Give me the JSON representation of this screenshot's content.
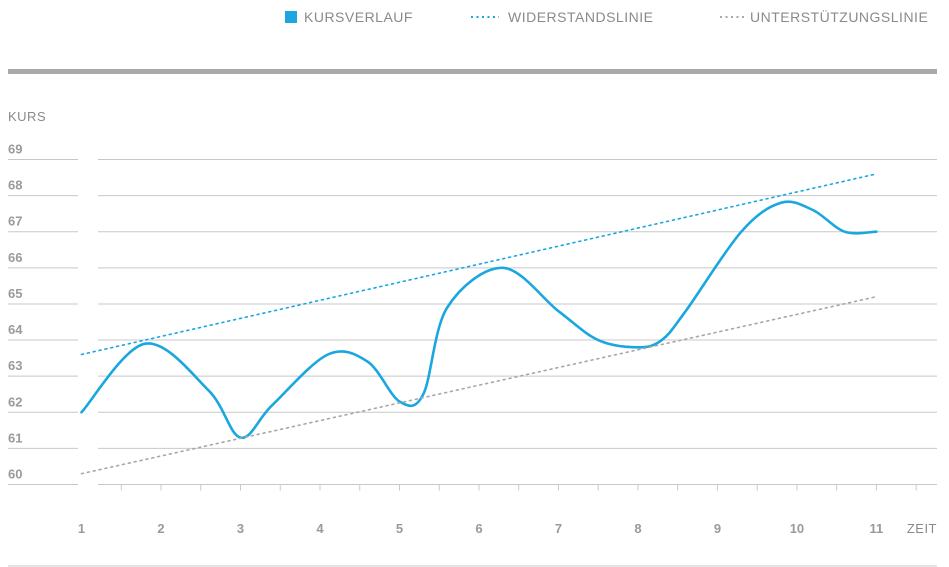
{
  "legend": {
    "kurs": "KURSVERLAUF",
    "widerstand": "WIDERSTANDSLINIE",
    "unterstuetzung": "UNTERSTÜTZUNGSLINIE"
  },
  "colors": {
    "kurs": "#1aa7e0",
    "widerstand": "#1aa7e0",
    "unterstuetzung": "#a8a8a8",
    "text": "#8a8a8a",
    "grid": "#c8c8c8",
    "band": "#a9a9a9"
  },
  "chart_data": {
    "type": "line",
    "xlabel": "ZEIT",
    "ylabel": "KURS",
    "x": [
      1,
      2,
      3,
      4,
      5,
      6,
      7,
      8,
      9,
      10,
      11
    ],
    "xlim": [
      0.1,
      11.8
    ],
    "ylim": [
      59.6,
      69.4
    ],
    "yticks": [
      69,
      68,
      67,
      66,
      65,
      64,
      63,
      62,
      61,
      60
    ],
    "ytick_labels": [
      "69",
      "68",
      "67",
      "66",
      "65",
      "64",
      "63",
      "62",
      "61",
      "60"
    ],
    "grid": true,
    "legend_position": "top",
    "series": [
      {
        "name": "KURSVERLAUF",
        "style": "solid",
        "x": [
          1,
          1.8,
          2.6,
          3,
          3.4,
          4.1,
          4.6,
          5,
          5.3,
          5.6,
          6.3,
          7,
          7.5,
          8,
          8.3,
          8.6,
          9.3,
          9.8,
          10.2,
          10.6,
          11
        ],
        "values": [
          62.0,
          63.9,
          62.6,
          61.3,
          62.2,
          63.6,
          63.4,
          62.3,
          62.5,
          64.9,
          66.0,
          64.8,
          64.0,
          63.8,
          64.0,
          64.8,
          67.0,
          67.8,
          67.6,
          67.0,
          67.0
        ]
      },
      {
        "name": "WIDERSTANDSLINIE",
        "style": "dotted",
        "x": [
          1,
          11
        ],
        "values": [
          63.6,
          68.6
        ]
      },
      {
        "name": "UNTERSTÜTZUNGSLINIE",
        "style": "dotted",
        "x": [
          1,
          11
        ],
        "values": [
          60.3,
          65.2
        ]
      }
    ]
  }
}
